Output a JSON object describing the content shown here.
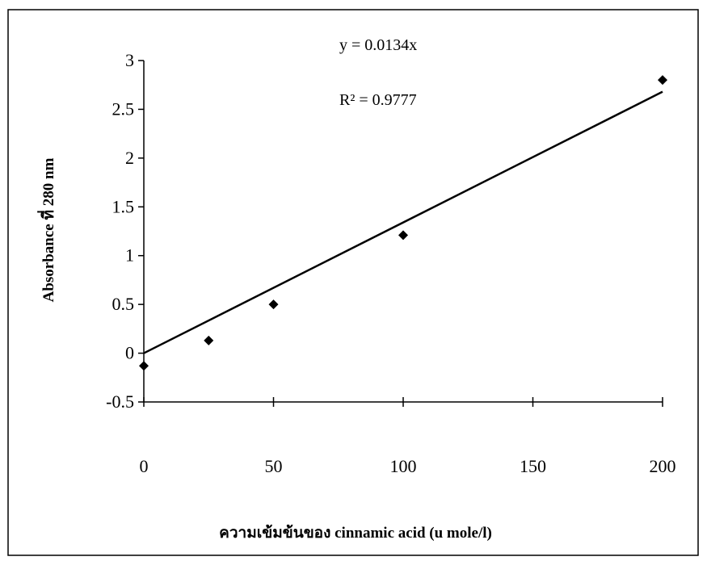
{
  "chart_data": {
    "type": "scatter",
    "x_label": "ความเข้มข้นของ cinnamic acid (u mole/l)",
    "y_label": "Absorbance ที่ 280 nm",
    "annotations": [
      "y = 0.0134x",
      "R² = 0.9777"
    ],
    "x": [
      0,
      25,
      50,
      100,
      200
    ],
    "values": [
      -0.13,
      0.13,
      0.5,
      1.21,
      2.8
    ],
    "color": "#000000",
    "trendline": {
      "x": [
        0,
        200
      ],
      "values": [
        0,
        2.68
      ]
    },
    "xlim": [
      0,
      200
    ],
    "xticks": [
      0,
      50,
      100,
      150,
      200
    ],
    "ylim": [
      -0.5,
      3
    ],
    "yticks": [
      -0.5,
      0,
      0.5,
      1,
      1.5,
      2,
      2.5,
      3
    ]
  }
}
